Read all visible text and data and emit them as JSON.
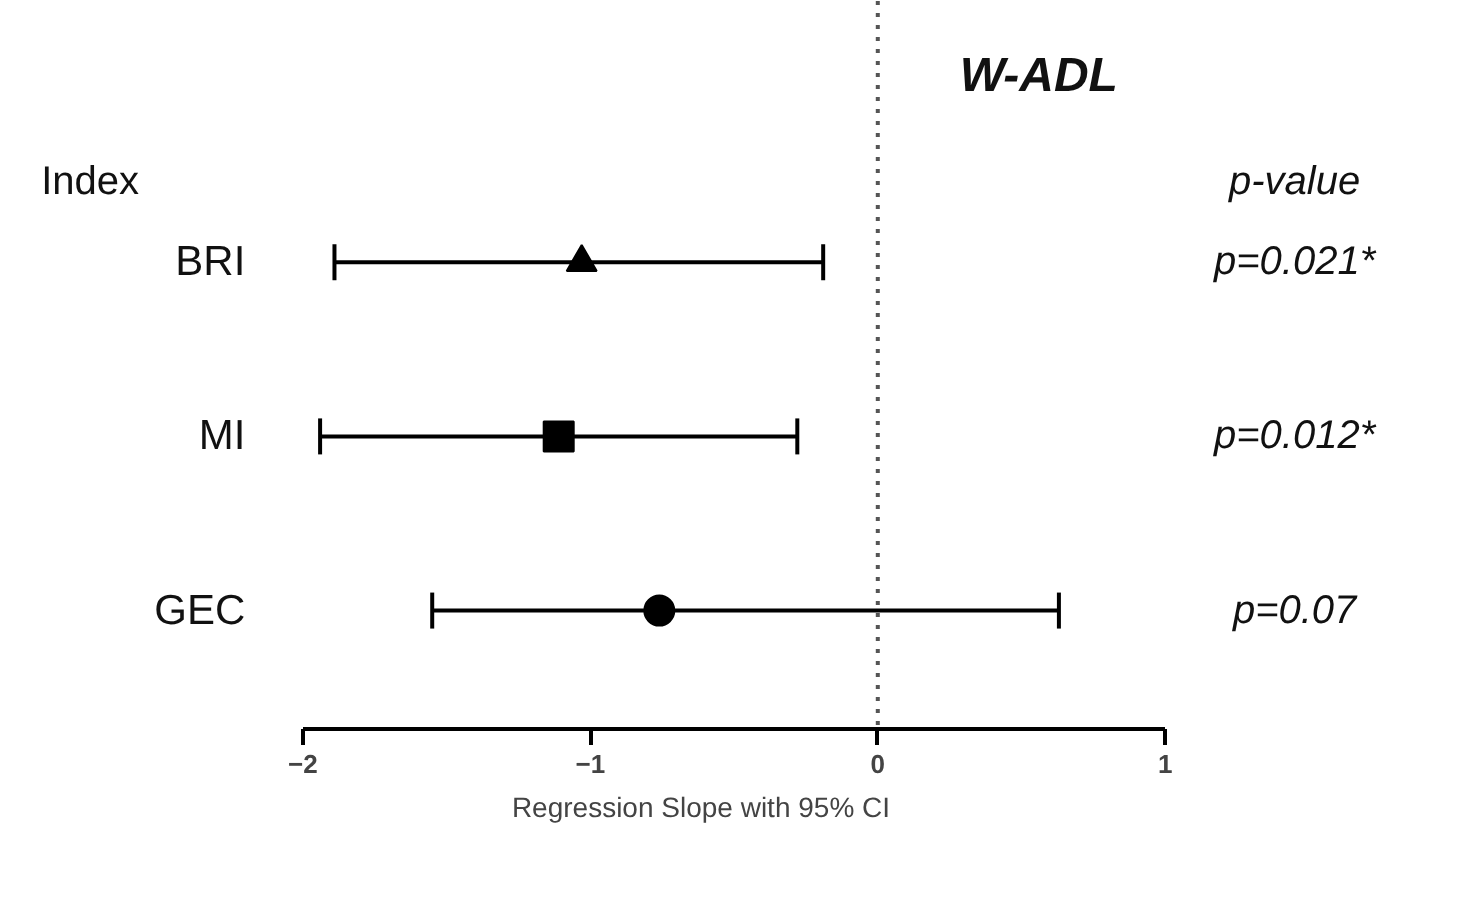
{
  "chart_data": {
    "type": "scatter",
    "orientation": "horizontal",
    "title": "W-ADL",
    "xlabel": "Regression Slope with 95% CI",
    "ylabel": "Index",
    "categories": [
      "BRI",
      "MI",
      "GEC"
    ],
    "series": [
      {
        "marker": "triangle",
        "color": "#000000",
        "values": [
          -1.03,
          null,
          null
        ],
        "errors": [
          [
            -1.89,
            -0.19
          ],
          null,
          null
        ]
      },
      {
        "marker": "square",
        "color": "#000000",
        "values": [
          null,
          -1.11,
          null
        ],
        "errors": [
          null,
          [
            -1.94,
            -0.28
          ],
          null
        ]
      },
      {
        "marker": "circle",
        "color": "#000000",
        "values": [
          null,
          null,
          -0.76
        ],
        "errors": [
          null,
          null,
          [
            -1.55,
            0.63
          ]
        ]
      }
    ],
    "xlim": [
      -2,
      1
    ],
    "xticks": [
      -2,
      -1,
      0,
      1
    ],
    "ref_lines": [
      {
        "axis": "x",
        "value": 0,
        "line_style": "dotted",
        "color": "#555555"
      }
    ],
    "annotations": [
      "p-value",
      "p=0.021*",
      "p=0.012*",
      "p=0.07"
    ]
  }
}
